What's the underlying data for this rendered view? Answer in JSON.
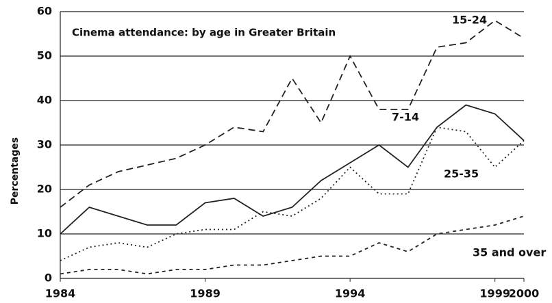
{
  "chart_data": {
    "type": "line",
    "title": "Cinema attendance: by age in Greater Britain",
    "y_label": "Percentages",
    "x": [
      1984,
      1985,
      1986,
      1987,
      1988,
      1989,
      1990,
      1991,
      1992,
      1993,
      1994,
      1995,
      1996,
      1997,
      1998,
      1999,
      2000
    ],
    "series": [
      {
        "name": "15-24",
        "color": "#222222",
        "style": "dashed",
        "values": [
          16,
          21,
          24,
          25.5,
          27,
          30,
          34,
          33,
          45,
          35,
          50,
          38,
          38,
          52,
          53,
          58,
          54
        ]
      },
      {
        "name": "7-14",
        "color": "#222222",
        "style": "solid",
        "values": [
          10,
          16,
          14,
          12,
          12,
          17,
          18,
          14,
          16,
          22,
          26,
          30,
          25,
          34,
          39,
          37,
          31
        ]
      },
      {
        "name": "25-35",
        "color": "#222222",
        "style": "dotted",
        "values": [
          4,
          7,
          8,
          7,
          10,
          11,
          11,
          15,
          14,
          18,
          25,
          19,
          19,
          34,
          33,
          25,
          31
        ]
      },
      {
        "name": "35 and over",
        "color": "#222222",
        "style": "finedash",
        "values": [
          1,
          2,
          2,
          1,
          2,
          2,
          3,
          3,
          4,
          5,
          5,
          8,
          6,
          10,
          11,
          12,
          14
        ]
      }
    ],
    "xlim": [
      1984,
      2000
    ],
    "xticks": [
      1984,
      1989,
      1994,
      1999,
      2000
    ],
    "ylim": [
      0,
      60
    ],
    "yticks": [
      0,
      10,
      20,
      30,
      40,
      50,
      60
    ],
    "grid": true
  }
}
